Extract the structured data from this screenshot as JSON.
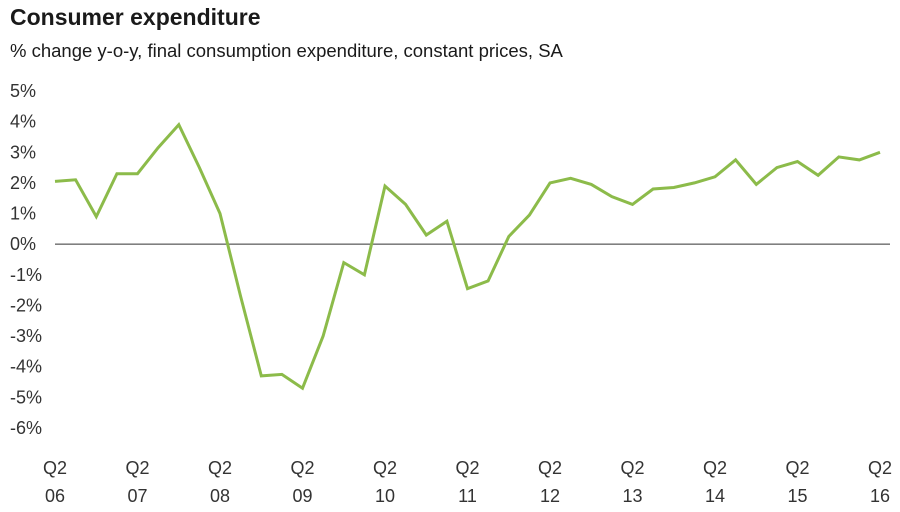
{
  "chart_data": {
    "type": "line",
    "title": "Consumer expenditure",
    "subtitle": "% change y-o-y, final consumption expenditure, constant prices, SA",
    "xlabel": "",
    "ylabel": "",
    "ylim": [
      -6,
      5
    ],
    "grid": false,
    "line_color": "#8cbb4a",
    "y_ticks": [
      "5%",
      "4%",
      "3%",
      "2%",
      "1%",
      "0%",
      "-1%",
      "-2%",
      "-3%",
      "-4%",
      "-5%",
      "-6%"
    ],
    "x_tick_labels": [
      {
        "q": "Q2",
        "yr": "06"
      },
      {
        "q": "Q2",
        "yr": "07"
      },
      {
        "q": "Q2",
        "yr": "08"
      },
      {
        "q": "Q2",
        "yr": "09"
      },
      {
        "q": "Q2",
        "yr": "10"
      },
      {
        "q": "Q2",
        "yr": "11"
      },
      {
        "q": "Q2",
        "yr": "12"
      },
      {
        "q": "Q2",
        "yr": "13"
      },
      {
        "q": "Q2",
        "yr": "14"
      },
      {
        "q": "Q2",
        "yr": "15"
      },
      {
        "q": "Q2",
        "yr": "16"
      }
    ],
    "x": [
      "Q2 06",
      "Q3 06",
      "Q4 06",
      "Q1 07",
      "Q2 07",
      "Q3 07",
      "Q4 07",
      "Q1 08",
      "Q2 08",
      "Q3 08",
      "Q4 08",
      "Q1 09",
      "Q2 09",
      "Q3 09",
      "Q4 09",
      "Q1 10",
      "Q2 10",
      "Q3 10",
      "Q4 10",
      "Q1 11",
      "Q2 11",
      "Q3 11",
      "Q4 11",
      "Q1 12",
      "Q2 12",
      "Q3 12",
      "Q4 12",
      "Q1 13",
      "Q2 13",
      "Q3 13",
      "Q4 13",
      "Q1 14",
      "Q2 14",
      "Q3 14",
      "Q4 14",
      "Q1 15",
      "Q2 15",
      "Q3 15",
      "Q4 15",
      "Q1 16",
      "Q2 16"
    ],
    "series": [
      {
        "values": [
          2.05,
          2.1,
          0.9,
          2.3,
          2.3,
          3.15,
          3.9,
          2.5,
          1.0,
          -1.7,
          -4.3,
          -4.25,
          -4.7,
          -3.0,
          -0.6,
          -1.0,
          1.9,
          1.3,
          0.3,
          0.75,
          -1.45,
          -1.2,
          0.25,
          0.95,
          2.0,
          2.15,
          1.95,
          1.55,
          1.3,
          1.8,
          1.85,
          2.0,
          2.2,
          2.75,
          1.95,
          2.5,
          2.7,
          2.25,
          2.85,
          2.75,
          3.0
        ]
      }
    ]
  }
}
